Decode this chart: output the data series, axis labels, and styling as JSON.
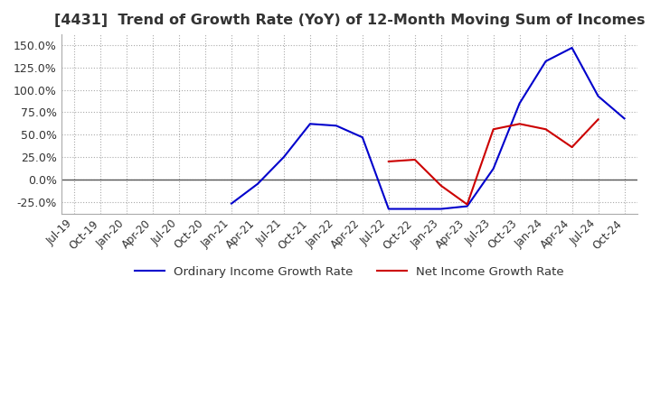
{
  "title": "[4431]  Trend of Growth Rate (YoY) of 12-Month Moving Sum of Incomes",
  "title_fontsize": 11.5,
  "background_color": "#ffffff",
  "grid_color": "#aaaaaa",
  "legend_labels": [
    "Ordinary Income Growth Rate",
    "Net Income Growth Rate"
  ],
  "legend_colors": [
    "#0000cc",
    "#cc0000"
  ],
  "x_labels": [
    "Jul-19",
    "Oct-19",
    "Jan-20",
    "Apr-20",
    "Jul-20",
    "Oct-20",
    "Jan-21",
    "Apr-21",
    "Jul-21",
    "Oct-21",
    "Jan-22",
    "Apr-22",
    "Jul-22",
    "Oct-22",
    "Jan-23",
    "Apr-23",
    "Jul-23",
    "Oct-23",
    "Jan-24",
    "Apr-24",
    "Jul-24",
    "Oct-24"
  ],
  "ordinary_income": [
    null,
    null,
    null,
    null,
    null,
    null,
    -0.27,
    -0.05,
    0.25,
    0.62,
    0.6,
    0.47,
    -0.33,
    -0.33,
    -0.33,
    -0.3,
    0.12,
    0.85,
    1.32,
    1.47,
    0.93,
    0.68
  ],
  "net_income": [
    null,
    null,
    null,
    null,
    null,
    null,
    null,
    null,
    null,
    null,
    null,
    null,
    0.2,
    0.22,
    -0.07,
    -0.28,
    0.56,
    0.62,
    0.56,
    0.36,
    0.67,
    null
  ],
  "yticks": [
    -0.25,
    0.0,
    0.25,
    0.5,
    0.75,
    1.0,
    1.25,
    1.5
  ],
  "ylim_min": -0.38,
  "ylim_max": 1.62
}
